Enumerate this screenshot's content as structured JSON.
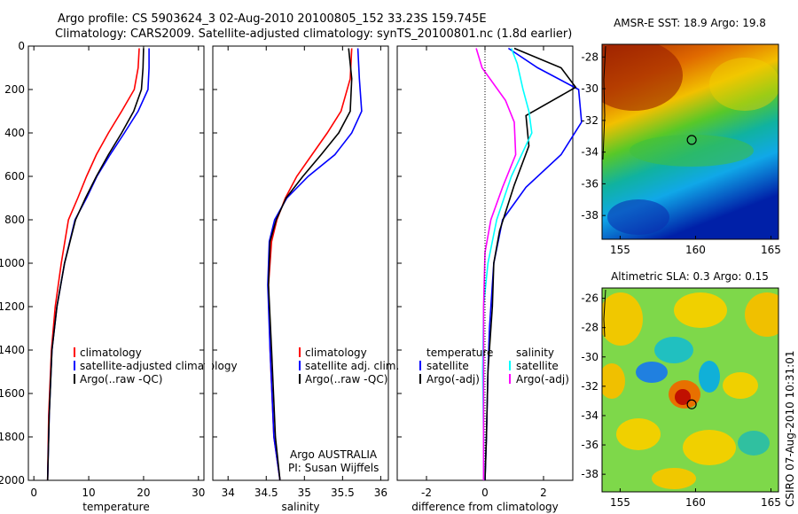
{
  "header": {
    "line1": "Argo profile: CS 5903624_3 02-Aug-2010 20100805_152 33.23S 159.745E",
    "line2": "Climatology: CARS2009. Satellite-adjusted climatology: synTS_20100801.nc (1.8d earlier)"
  },
  "footer": {
    "argo": "Argo AUSTRALIA",
    "pi": "PI: Susan Wijffels",
    "stamp": "CSIRO 07-Aug-2010 10:31:01"
  },
  "colors": {
    "climatology": "#ff0000",
    "satellite": "#0000ff",
    "argo": "#000000",
    "salinity_satellite": "#00ffff",
    "salinity_argo": "#ff00ff"
  },
  "chart_data": [
    {
      "type": "line",
      "id": "temperature",
      "xlabel": "temperature",
      "ylabel": "",
      "xlim": [
        -1,
        31
      ],
      "ylim": [
        2000,
        0
      ],
      "xticks": [
        0,
        10,
        20,
        30
      ],
      "yticks": [
        0,
        200,
        400,
        600,
        800,
        1000,
        1200,
        1400,
        1600,
        1800,
        2000
      ],
      "legend": [
        "climatology",
        "satellite-adjusted climatology",
        "Argo(..raw -QC)"
      ],
      "legend_position": "lower-right",
      "series": [
        {
          "name": "climatology",
          "color": "#ff0000",
          "x": [
            19.2,
            19.0,
            18.3,
            16.0,
            13.6,
            11.4,
            9.6,
            8.0,
            6.3,
            5.0,
            3.9,
            3.2,
            2.7,
            2.5
          ],
          "y": [
            10,
            100,
            200,
            300,
            400,
            500,
            600,
            700,
            800,
            1000,
            1200,
            1400,
            1700,
            2000
          ]
        },
        {
          "name": "satellite-adjusted climatology",
          "color": "#0000ff",
          "x": [
            21.0,
            21.0,
            20.8,
            19.0,
            16.5,
            13.9,
            11.5,
            9.6,
            7.5,
            5.6,
            4.2,
            3.3,
            2.8,
            2.5
          ],
          "y": [
            10,
            100,
            200,
            300,
            400,
            500,
            600,
            700,
            800,
            1000,
            1200,
            1400,
            1700,
            2000
          ]
        },
        {
          "name": "Argo(..raw -QC)",
          "color": "#000000",
          "x": [
            20.0,
            19.9,
            19.6,
            18.2,
            16.0,
            13.6,
            11.4,
            9.4,
            7.6,
            5.6,
            4.2,
            3.3,
            2.8,
            2.5
          ],
          "y": [
            10,
            100,
            200,
            300,
            400,
            500,
            600,
            700,
            800,
            1000,
            1200,
            1400,
            1700,
            2000
          ]
        }
      ]
    },
    {
      "type": "line",
      "id": "salinity",
      "xlabel": "salinity",
      "ylabel": "",
      "xlim": [
        33.8,
        36.1
      ],
      "ylim": [
        2000,
        0
      ],
      "xticks": [
        34,
        34.5,
        35,
        35.5,
        36
      ],
      "legend": [
        "climatology",
        "satellite adj. clim.",
        "Argo(..raw -QC)"
      ],
      "legend_position": "lower-right",
      "series": [
        {
          "name": "climatology",
          "color": "#ff0000",
          "x": [
            35.62,
            35.6,
            35.48,
            35.3,
            35.1,
            34.9,
            34.75,
            34.64,
            34.57,
            34.53,
            34.55,
            34.6,
            34.68
          ],
          "y": [
            10,
            150,
            300,
            400,
            500,
            600,
            700,
            800,
            900,
            1100,
            1400,
            1800,
            2000
          ]
        },
        {
          "name": "satellite adj. clim.",
          "color": "#0000ff",
          "x": [
            35.7,
            35.72,
            35.75,
            35.62,
            35.4,
            35.05,
            34.77,
            34.61,
            34.54,
            34.52,
            34.55,
            34.6,
            34.68
          ],
          "y": [
            10,
            150,
            300,
            400,
            500,
            600,
            700,
            800,
            900,
            1100,
            1400,
            1800,
            2000
          ]
        },
        {
          "name": "Argo(..raw -QC)",
          "color": "#000000",
          "x": [
            35.58,
            35.62,
            35.6,
            35.45,
            35.22,
            34.98,
            34.76,
            34.63,
            34.55,
            34.53,
            34.57,
            34.62,
            34.68
          ],
          "y": [
            10,
            150,
            300,
            400,
            500,
            600,
            700,
            800,
            900,
            1100,
            1400,
            1800,
            2000
          ]
        }
      ]
    },
    {
      "type": "line",
      "id": "difference",
      "xlabel": "difference from climatology",
      "ylabel": "",
      "xlim": [
        -3,
        3
      ],
      "ylim": [
        2000,
        0
      ],
      "xticks": [
        -2,
        0,
        2
      ],
      "legend_groups": [
        {
          "title": "temperature",
          "entries": [
            "satellite",
            "Argo(-adj)"
          ]
        },
        {
          "title": "salinity",
          "entries": [
            "satellite",
            "Argo(-adj)"
          ]
        }
      ],
      "legend_position": "lower-center",
      "series": [
        {
          "name": "temperature satellite",
          "color": "#0000ff",
          "x": [
            0.8,
            1.8,
            3.2,
            3.3,
            2.6,
            1.4,
            0.6,
            0.3,
            0.15,
            0.1,
            0.05,
            0.0
          ],
          "y": [
            10,
            100,
            200,
            350,
            500,
            650,
            800,
            1000,
            1300,
            1500,
            1800,
            2000
          ]
        },
        {
          "name": "temperature Argo(-adj)",
          "color": "#000000",
          "x": [
            1.0,
            2.6,
            3.1,
            1.4,
            1.5,
            1.0,
            0.5,
            0.3,
            0.25,
            0.1,
            0.05,
            0.0
          ],
          "y": [
            10,
            100,
            190,
            320,
            460,
            640,
            850,
            1000,
            1200,
            1500,
            1800,
            2000
          ]
        },
        {
          "name": "salinity satellite",
          "color": "#00ffff",
          "x": [
            0.9,
            1.1,
            1.3,
            1.5,
            1.6,
            0.9,
            0.4,
            0.1,
            -0.05,
            -0.08,
            -0.05,
            -0.05
          ],
          "y": [
            10,
            80,
            200,
            300,
            400,
            600,
            800,
            1000,
            1200,
            1500,
            1800,
            2000
          ]
        },
        {
          "name": "salinity Argo(-adj)",
          "color": "#ff00ff",
          "x": [
            -0.3,
            -0.1,
            0.7,
            1.0,
            1.05,
            0.6,
            0.2,
            0.0,
            -0.05,
            -0.05,
            -0.05,
            -0.05
          ],
          "y": [
            10,
            100,
            250,
            350,
            500,
            650,
            800,
            950,
            1200,
            1500,
            1800,
            2000
          ]
        }
      ]
    },
    {
      "type": "heatmap",
      "id": "sst_map",
      "title": "AMSR-E SST: 18.9 Argo: 19.8",
      "xlim": [
        153.8,
        165.5
      ],
      "ylim": [
        -39.5,
        -27.2
      ],
      "xticks": [
        155,
        160,
        165
      ],
      "yticks": [
        -28,
        -30,
        -32,
        -34,
        -36,
        -38
      ],
      "marker": {
        "lon": 159.745,
        "lat": -33.23
      }
    },
    {
      "type": "heatmap",
      "id": "sla_map",
      "title": "Altimetric SLA: 0.3 Argo: 0.15",
      "xlim": [
        153.8,
        165.5
      ],
      "ylim": [
        -39.2,
        -25.3
      ],
      "xticks": [
        155,
        160,
        165
      ],
      "yticks": [
        -26,
        -28,
        -30,
        -32,
        -34,
        -36,
        -38
      ],
      "marker": {
        "lon": 159.745,
        "lat": -33.23
      }
    }
  ]
}
